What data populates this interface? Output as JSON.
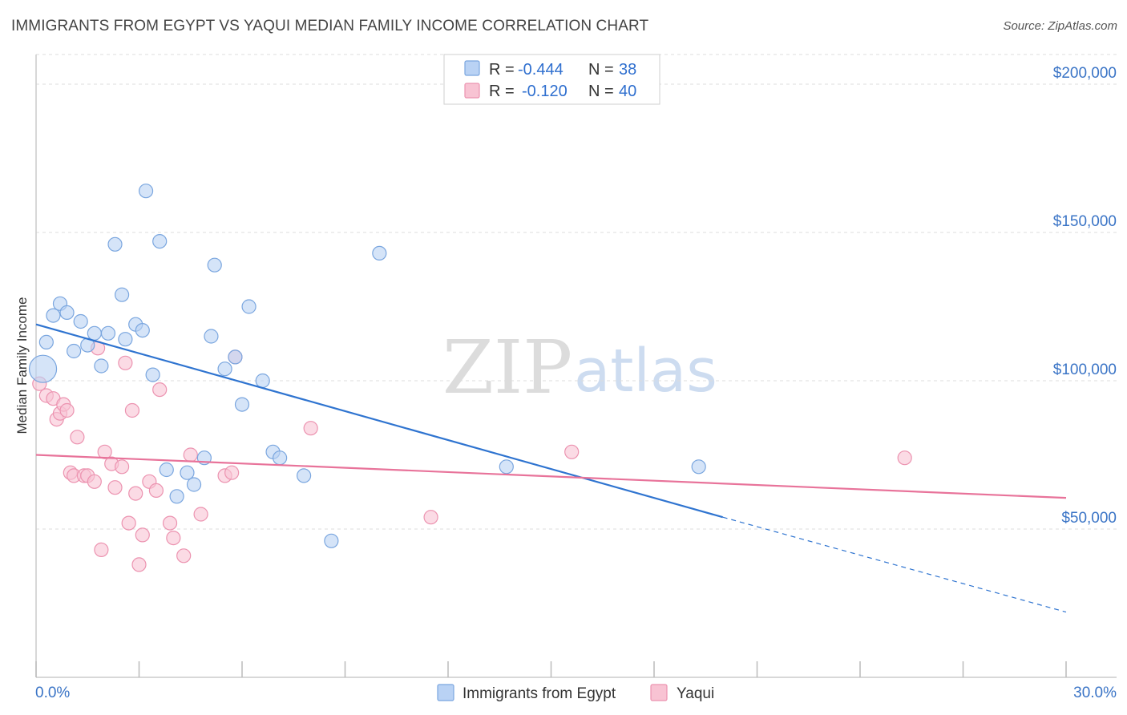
{
  "title": "IMMIGRANTS FROM EGYPT VS YAQUI MEDIAN FAMILY INCOME CORRELATION CHART",
  "source": "Source: ZipAtlas.com",
  "watermark": {
    "zip": "ZIP",
    "atlas": "atlas"
  },
  "colors": {
    "blue_fill": "#b9d2f4",
    "blue_stroke": "#7aa6df",
    "blue_line": "#2f74d0",
    "pink_fill": "#f8c3d3",
    "pink_stroke": "#ec93b0",
    "pink_line": "#e8739a",
    "grid": "#dddddd",
    "tick_text": "#3a74c6"
  },
  "legend": {
    "rows": [
      {
        "r_label": "R =",
        "r_value": "-0.444",
        "n_label": "N =",
        "n_value": "38"
      },
      {
        "r_label": "R =",
        "r_value": "-0.120",
        "n_label": "N =",
        "n_value": "40"
      }
    ]
  },
  "bottom_legend": [
    "Immigrants from Egypt",
    "Yaqui"
  ],
  "chart_data": {
    "type": "scatter",
    "title": "IMMIGRANTS FROM EGYPT VS YAQUI MEDIAN FAMILY INCOME CORRELATION CHART",
    "xlabel": "",
    "ylabel": "Median Family Income",
    "xlim": [
      0,
      30
    ],
    "ylim": [
      0,
      210000
    ],
    "x_tick_labels": [
      "0.0%",
      "30.0%"
    ],
    "y_ticks": [
      50000,
      100000,
      150000,
      200000
    ],
    "y_tick_labels": [
      "$50,000",
      "$100,000",
      "$150,000",
      "$200,000"
    ],
    "series": [
      {
        "name": "Immigrants from Egypt",
        "r": -0.444,
        "n": 38,
        "trend": {
          "x0": 0.0,
          "y0": 119000,
          "x_solid_end": 20.0,
          "y_solid_end": 54000,
          "x1": 30.0,
          "y1": 22000
        },
        "points": [
          {
            "x": 0.2,
            "y": 104000,
            "big": true
          },
          {
            "x": 0.3,
            "y": 113000
          },
          {
            "x": 0.5,
            "y": 122000
          },
          {
            "x": 0.7,
            "y": 126000
          },
          {
            "x": 0.9,
            "y": 123000
          },
          {
            "x": 1.1,
            "y": 110000
          },
          {
            "x": 1.3,
            "y": 120000
          },
          {
            "x": 1.5,
            "y": 112000
          },
          {
            "x": 1.7,
            "y": 116000
          },
          {
            "x": 1.9,
            "y": 105000
          },
          {
            "x": 2.1,
            "y": 116000
          },
          {
            "x": 2.3,
            "y": 146000
          },
          {
            "x": 2.5,
            "y": 129000
          },
          {
            "x": 2.6,
            "y": 114000
          },
          {
            "x": 2.9,
            "y": 119000
          },
          {
            "x": 3.1,
            "y": 117000
          },
          {
            "x": 3.2,
            "y": 164000
          },
          {
            "x": 3.4,
            "y": 102000
          },
          {
            "x": 3.6,
            "y": 147000
          },
          {
            "x": 3.8,
            "y": 70000
          },
          {
            "x": 4.1,
            "y": 61000
          },
          {
            "x": 4.4,
            "y": 69000
          },
          {
            "x": 4.6,
            "y": 65000
          },
          {
            "x": 4.9,
            "y": 74000
          },
          {
            "x": 5.1,
            "y": 115000
          },
          {
            "x": 5.2,
            "y": 139000
          },
          {
            "x": 5.5,
            "y": 104000
          },
          {
            "x": 5.8,
            "y": 108000
          },
          {
            "x": 6.0,
            "y": 92000
          },
          {
            "x": 6.2,
            "y": 125000
          },
          {
            "x": 6.6,
            "y": 100000
          },
          {
            "x": 6.9,
            "y": 76000
          },
          {
            "x": 7.1,
            "y": 74000
          },
          {
            "x": 7.8,
            "y": 68000
          },
          {
            "x": 8.6,
            "y": 46000
          },
          {
            "x": 10.0,
            "y": 143000
          },
          {
            "x": 13.7,
            "y": 71000
          },
          {
            "x": 19.3,
            "y": 71000
          }
        ]
      },
      {
        "name": "Yaqui",
        "r": -0.12,
        "n": 40,
        "trend": {
          "x0": 0.0,
          "y0": 75000,
          "x1": 30.0,
          "y1": 60500
        },
        "points": [
          {
            "x": 0.1,
            "y": 99000
          },
          {
            "x": 0.3,
            "y": 95000
          },
          {
            "x": 0.5,
            "y": 94000
          },
          {
            "x": 0.6,
            "y": 87000
          },
          {
            "x": 0.7,
            "y": 89000
          },
          {
            "x": 0.8,
            "y": 92000
          },
          {
            "x": 0.9,
            "y": 90000
          },
          {
            "x": 1.0,
            "y": 69000
          },
          {
            "x": 1.1,
            "y": 68000
          },
          {
            "x": 1.2,
            "y": 81000
          },
          {
            "x": 1.4,
            "y": 68000
          },
          {
            "x": 1.5,
            "y": 68000
          },
          {
            "x": 1.7,
            "y": 66000
          },
          {
            "x": 1.8,
            "y": 111000
          },
          {
            "x": 1.9,
            "y": 43000
          },
          {
            "x": 2.0,
            "y": 76000
          },
          {
            "x": 2.2,
            "y": 72000
          },
          {
            "x": 2.3,
            "y": 64000
          },
          {
            "x": 2.5,
            "y": 71000
          },
          {
            "x": 2.6,
            "y": 106000
          },
          {
            "x": 2.7,
            "y": 52000
          },
          {
            "x": 2.8,
            "y": 90000
          },
          {
            "x": 2.9,
            "y": 62000
          },
          {
            "x": 3.0,
            "y": 38000
          },
          {
            "x": 3.1,
            "y": 48000
          },
          {
            "x": 3.3,
            "y": 66000
          },
          {
            "x": 3.5,
            "y": 63000
          },
          {
            "x": 3.6,
            "y": 97000
          },
          {
            "x": 3.9,
            "y": 52000
          },
          {
            "x": 4.0,
            "y": 47000
          },
          {
            "x": 4.3,
            "y": 41000
          },
          {
            "x": 4.5,
            "y": 75000
          },
          {
            "x": 4.8,
            "y": 55000
          },
          {
            "x": 5.5,
            "y": 68000
          },
          {
            "x": 5.7,
            "y": 69000
          },
          {
            "x": 5.8,
            "y": 108000
          },
          {
            "x": 8.0,
            "y": 84000
          },
          {
            "x": 11.5,
            "y": 54000
          },
          {
            "x": 15.6,
            "y": 76000
          },
          {
            "x": 25.3,
            "y": 74000
          }
        ]
      }
    ]
  }
}
